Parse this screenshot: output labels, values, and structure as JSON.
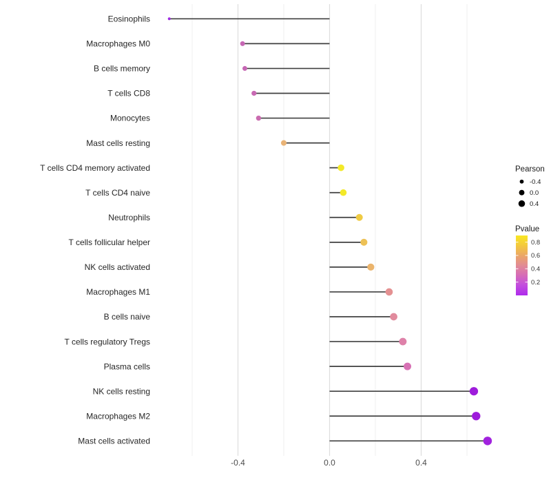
{
  "chart_data": {
    "type": "lollipop",
    "title": "",
    "xlabel": "",
    "ylabel": "",
    "xlim": [
      -0.77,
      0.77
    ],
    "x_major_ticks": [
      -0.4,
      0.0,
      0.4
    ],
    "x_tick_labels": [
      "-0.4",
      "0.0",
      "0.4"
    ],
    "x_minor_gridlines": [
      -0.6,
      -0.2,
      0.2,
      0.6
    ],
    "grid": "vertical-only",
    "rows": [
      {
        "label": "Eosinophils",
        "pearson": -0.7,
        "pvalue": 0.1,
        "color": "#9d2ce2"
      },
      {
        "label": "Macrophages M0",
        "pearson": -0.38,
        "pvalue": 0.38,
        "color": "#c667b4"
      },
      {
        "label": "B cells memory",
        "pearson": -0.37,
        "pvalue": 0.38,
        "color": "#c667b4"
      },
      {
        "label": "T cells CD8",
        "pearson": -0.33,
        "pvalue": 0.39,
        "color": "#c869b3"
      },
      {
        "label": "Monocytes",
        "pearson": -0.31,
        "pvalue": 0.4,
        "color": "#ca6cb0"
      },
      {
        "label": "Mast cells resting",
        "pearson": -0.2,
        "pvalue": 0.62,
        "color": "#e9b376"
      },
      {
        "label": "T cells CD4 memory activated",
        "pearson": 0.05,
        "pvalue": 0.86,
        "color": "#f3e928"
      },
      {
        "label": "T cells CD4 naive",
        "pearson": 0.06,
        "pvalue": 0.86,
        "color": "#f3e928"
      },
      {
        "label": "Neutrophils",
        "pearson": 0.13,
        "pvalue": 0.78,
        "color": "#efcb44"
      },
      {
        "label": "T cells follicular helper",
        "pearson": 0.15,
        "pvalue": 0.74,
        "color": "#edc156"
      },
      {
        "label": "NK cells activated",
        "pearson": 0.18,
        "pvalue": 0.66,
        "color": "#ebb46c"
      },
      {
        "label": "Macrophages M1",
        "pearson": 0.26,
        "pvalue": 0.56,
        "color": "#e49192"
      },
      {
        "label": "B cells naive",
        "pearson": 0.28,
        "pvalue": 0.53,
        "color": "#e18b9d"
      },
      {
        "label": "T cells regulatory  Tregs",
        "pearson": 0.32,
        "pvalue": 0.48,
        "color": "#de81a9"
      },
      {
        "label": "Plasma cells",
        "pearson": 0.34,
        "pvalue": 0.43,
        "color": "#d771b4"
      },
      {
        "label": "NK cells resting",
        "pearson": 0.63,
        "pvalue": 0.08,
        "color": "#9e1cdb"
      },
      {
        "label": "Macrophages M2",
        "pearson": 0.64,
        "pvalue": 0.08,
        "color": "#9e1cdb"
      },
      {
        "label": "Mast cells activated",
        "pearson": 0.69,
        "pvalue": 0.07,
        "color": "#a122de"
      }
    ],
    "legend": {
      "size_legend": {
        "title": "Pearson",
        "entries": [
          {
            "label": "-0.4",
            "value": -0.4
          },
          {
            "label": "0.0",
            "value": 0.0
          },
          {
            "label": "0.4",
            "value": 0.4
          }
        ],
        "dot_color": "#000000"
      },
      "color_legend": {
        "title": "Pvalue",
        "tick_labels": [
          "0.8",
          "0.6",
          "0.4",
          "0.2"
        ],
        "tick_values": [
          0.8,
          0.6,
          0.4,
          0.2
        ],
        "bar_range": [
          0.0,
          0.9
        ],
        "gradient_top_to_bottom": [
          {
            "offset": 0.0,
            "color": "#f9e721"
          },
          {
            "offset": 0.17,
            "color": "#f3c83e"
          },
          {
            "offset": 0.35,
            "color": "#eaa36b"
          },
          {
            "offset": 0.5,
            "color": "#e18b95"
          },
          {
            "offset": 0.65,
            "color": "#d76eb4"
          },
          {
            "offset": 0.82,
            "color": "#c44fdd"
          },
          {
            "offset": 1.0,
            "color": "#ae2bec"
          }
        ]
      }
    },
    "style_colors": {
      "background": "#ffffff",
      "stem": "#3f3f3f",
      "grid_major": "#dddddd",
      "grid_minor": "#efefef",
      "axis_text": "#4d4d4d",
      "row_label_text": "#262626",
      "legend_text": "#1a1a1a"
    }
  }
}
